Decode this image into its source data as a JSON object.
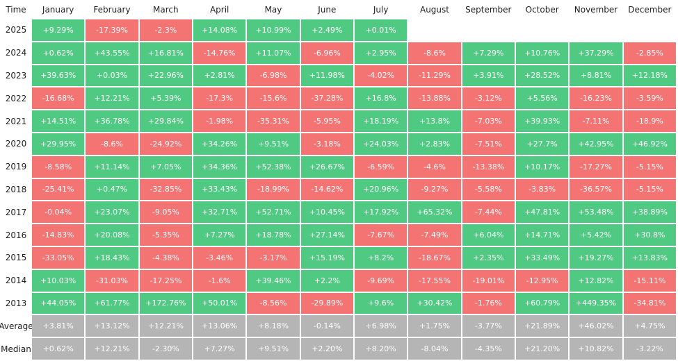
{
  "table": {
    "header": [
      "Time",
      "January",
      "February",
      "March",
      "April",
      "May",
      "June",
      "July",
      "August",
      "September",
      "October",
      "November",
      "December"
    ],
    "rows": [
      [
        "2025",
        "+9.29%",
        "-17.39%",
        "-2.3%",
        "+14.08%",
        "+10.99%",
        "+2.49%",
        "+0.01%"
      ],
      [
        "2024",
        "+0.62%",
        "+43.55%",
        "+16.81%",
        "-14.76%",
        "+11.07%",
        "-6.96%",
        "+2.95%",
        "-8.6%",
        "+7.29%",
        "+10.76%",
        "+37.29%",
        "-2.85%"
      ],
      [
        "2023",
        "+39.63%",
        "+0.03%",
        "+22.96%",
        "+2.81%",
        "-6.98%",
        "+11.98%",
        "-4.02%",
        "-11.29%",
        "+3.91%",
        "+28.52%",
        "+8.81%",
        "+12.18%"
      ],
      [
        "2022",
        "-16.68%",
        "+12.21%",
        "+5.39%",
        "-17.3%",
        "-15.6%",
        "-37.28%",
        "+16.8%",
        "-13.88%",
        "-3.12%",
        "+5.56%",
        "-16.23%",
        "-3.59%"
      ],
      [
        "2021",
        "+14.51%",
        "+36.78%",
        "+29.84%",
        "-1.98%",
        "-35.31%",
        "-5.95%",
        "+18.19%",
        "+13.8%",
        "-7.03%",
        "+39.93%",
        "-7.11%",
        "-18.9%"
      ],
      [
        "2020",
        "+29.95%",
        "-8.6%",
        "-24.92%",
        "+34.26%",
        "+9.51%",
        "-3.18%",
        "+24.03%",
        "+2.83%",
        "-7.51%",
        "+27.7%",
        "+42.95%",
        "+46.92%"
      ],
      [
        "2019",
        "-8.58%",
        "+11.14%",
        "+7.05%",
        "+34.36%",
        "+52.38%",
        "+26.67%",
        "-6.59%",
        "-4.6%",
        "-13.38%",
        "+10.17%",
        "-17.27%",
        "-5.15%"
      ],
      [
        "2018",
        "-25.41%",
        "+0.47%",
        "-32.85%",
        "+33.43%",
        "-18.99%",
        "-14.62%",
        "+20.96%",
        "-9.27%",
        "-5.58%",
        "-3.83%",
        "-36.57%",
        "-5.15%"
      ],
      [
        "2017",
        "-0.04%",
        "+23.07%",
        "-9.05%",
        "+32.71%",
        "+52.71%",
        "+10.45%",
        "+17.92%",
        "+65.32%",
        "-7.44%",
        "+47.81%",
        "+53.48%",
        "+38.89%"
      ],
      [
        "2016",
        "-14.83%",
        "+20.08%",
        "-5.35%",
        "+7.27%",
        "+18.78%",
        "+27.14%",
        "-7.67%",
        "-7.49%",
        "+6.04%",
        "+14.71%",
        "+5.42%",
        "+30.8%"
      ],
      [
        "2015",
        "-33.05%",
        "+18.43%",
        "-4.38%",
        "-3.46%",
        "-3.17%",
        "+15.19%",
        "+8.2%",
        "-18.67%",
        "+2.35%",
        "+33.49%",
        "+19.27%",
        "+13.83%"
      ],
      [
        "2014",
        "+10.03%",
        "-31.03%",
        "-17.25%",
        "-1.6%",
        "+39.46%",
        "+2.2%",
        "-9.69%",
        "-17.55%",
        "-19.01%",
        "-12.95%",
        "+12.82%",
        "-15.11%"
      ],
      [
        "2013",
        "+44.05%",
        "+61.77%",
        "+172.76%",
        "+50.01%",
        "-8.56%",
        "-29.89%",
        "+9.6%",
        "+30.42%",
        "-1.76%",
        "+60.79%",
        "+449.35%",
        "-34.81%"
      ]
    ],
    "summary": [
      [
        "Average",
        "+3.81%",
        "+13.12%",
        "+12.21%",
        "+13.06%",
        "+8.18%",
        "-0.14%",
        "+6.98%",
        "+1.75%",
        "-3.77%",
        "+21.89%",
        "+46.02%",
        "+4.75%"
      ],
      [
        "Median",
        "+0.62%",
        "+12.21%",
        "-2.30%",
        "+7.27%",
        "+9.51%",
        "+2.20%",
        "+8.20%",
        "-8.04%",
        "-4.35%",
        "+21.20%",
        "+10.82%",
        "-3.22%"
      ]
    ]
  }
}
